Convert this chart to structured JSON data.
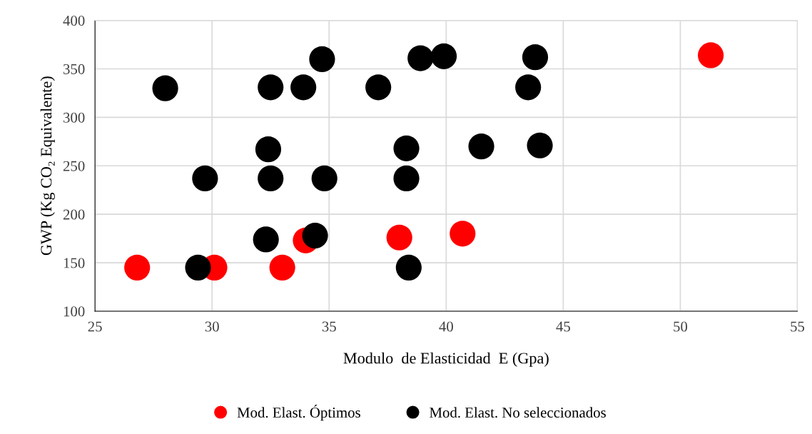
{
  "chart_data": {
    "type": "scatter",
    "xlabel": "Modulo  de Elasticidad  E (Gpa)",
    "ylabel": "GWP (Kg CO₂ Equivalente)",
    "xlim": [
      25,
      55
    ],
    "xticks": [
      25,
      30,
      35,
      40,
      45,
      50,
      55
    ],
    "ylim": [
      100,
      400
    ],
    "yticks": [
      100,
      150,
      200,
      250,
      300,
      350,
      400
    ],
    "grid": true,
    "legend": "bottom",
    "marker": "circle",
    "series": [
      {
        "name": "Mod. Elast. Óptimos",
        "color": "#ff0000",
        "x": [
          26.8,
          30.1,
          33.0,
          34.0,
          38.0,
          40.7,
          51.3
        ],
        "values": [
          145,
          145,
          145,
          173,
          176,
          180,
          364
        ]
      },
      {
        "name": "Mod. Elast. No seleccionados",
        "color": "#000000",
        "x": [
          28.0,
          29.7,
          29.4,
          32.3,
          32.4,
          32.5,
          32.5,
          33.9,
          34.7,
          34.4,
          34.8,
          37.1,
          38.3,
          38.3,
          38.4,
          38.9,
          39.9,
          41.5,
          43.5,
          43.8,
          44.0
        ],
        "values": [
          330,
          237,
          145,
          174,
          267,
          237,
          331,
          331,
          360,
          178,
          237,
          331,
          268,
          237,
          145,
          361,
          363,
          270,
          331,
          362,
          271
        ]
      }
    ]
  }
}
